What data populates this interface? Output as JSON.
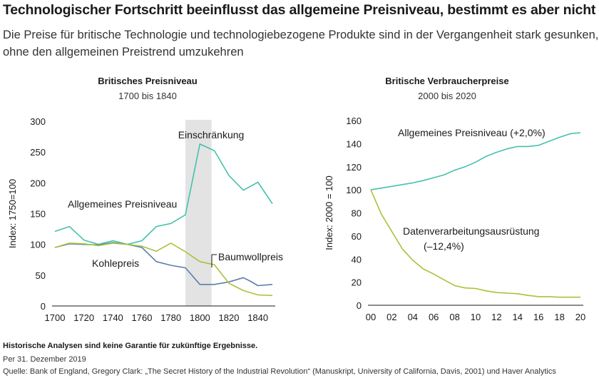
{
  "header": {
    "title": "Technologischer Fortschritt beeinflusst das allgemeine Preisniveau, bestimmt es aber nicht",
    "subtitle_line1": "Die Preise für britische Technologie und technologiebezogene Produkte sind in der Vergangenheit stark gesunken,",
    "subtitle_line2": "ohne den allgemeinen Preistrend umzukehren"
  },
  "colors": {
    "teal": "#45c1ac",
    "lime": "#a9c23a",
    "blue": "#5b7fae",
    "shade": "#e3e3e3"
  },
  "footer": {
    "disclaimer": "Historische Analysen sind keine Garantie für zukünftige Ergebnisse.",
    "date": "Per 31. Dezember 2019",
    "source": "Quelle: Bank of England, Gregory Clark: „The Secret History of the Industrial Revolution“ (Manuskript, University of California, Davis, 2001) und Haver Analytics"
  },
  "chart_data": [
    {
      "type": "line",
      "title": "Britisches Preisniveau",
      "subtitle": "1700 bis 1840",
      "ylabel": "Index: 1750=100",
      "xlim": [
        1700,
        1850
      ],
      "ylim": [
        0,
        300
      ],
      "xticks": [
        "1700",
        "1720",
        "1740",
        "1760",
        "1780",
        "1800",
        "1820",
        "1840"
      ],
      "yticks": [
        "0",
        "50",
        "100",
        "150",
        "200",
        "250",
        "300"
      ],
      "grid": false,
      "shaded_region": {
        "from": 1790,
        "to": 1808,
        "label": "Einschränkung"
      },
      "series": [
        {
          "name": "Allgemeines Preisniveau",
          "color": "teal",
          "x": [
            1700,
            1710,
            1720,
            1730,
            1740,
            1750,
            1760,
            1770,
            1780,
            1790,
            1800,
            1810,
            1820,
            1830,
            1840,
            1850
          ],
          "y": [
            121,
            129,
            107,
            100,
            106,
            100,
            106,
            129,
            134,
            148,
            263,
            252,
            212,
            188,
            201,
            166
          ]
        },
        {
          "name": "Kohlepreis",
          "color": "blue",
          "x": [
            1700,
            1710,
            1720,
            1730,
            1740,
            1750,
            1760,
            1770,
            1780,
            1790,
            1800,
            1810,
            1820,
            1830,
            1835,
            1840,
            1850
          ],
          "y": [
            95,
            101,
            100,
            99,
            103,
            100,
            95,
            72,
            66,
            62,
            35,
            35,
            39,
            46,
            40,
            33,
            35
          ]
        },
        {
          "name": "Baumwollpreis",
          "color": "lime",
          "x": [
            1700,
            1710,
            1720,
            1730,
            1740,
            1750,
            1760,
            1770,
            1780,
            1790,
            1800,
            1810,
            1820,
            1830,
            1840,
            1850
          ],
          "y": [
            95,
            102,
            101,
            98,
            102,
            100,
            97,
            89,
            102,
            88,
            72,
            67,
            37,
            25,
            18,
            17
          ]
        }
      ],
      "annotations": [
        "Einschränkung",
        "Allgemeines Preisniveau",
        "Kohlepreis",
        "Baumwollpreis"
      ]
    },
    {
      "type": "line",
      "title": "Britische Verbraucherpreise",
      "subtitle": "2000 bis 2020",
      "ylabel": "Index: 2000 = 100",
      "xlim": [
        2000,
        2020
      ],
      "ylim": [
        0,
        160
      ],
      "xticks": [
        "00",
        "02",
        "04",
        "06",
        "08",
        "10",
        "12",
        "14",
        "16",
        "18",
        "20"
      ],
      "yticks": [
        "0",
        "20",
        "40",
        "60",
        "80",
        "100",
        "120",
        "140",
        "160"
      ],
      "grid": false,
      "series": [
        {
          "name": "Allgemeines Preisniveau (+2,0%)",
          "color": "teal",
          "x": [
            2000,
            2001,
            2002,
            2003,
            2004,
            2005,
            2006,
            2007,
            2008,
            2009,
            2010,
            2011,
            2012,
            2013,
            2014,
            2015,
            2016,
            2017,
            2018,
            2019,
            2020
          ],
          "y": [
            100,
            101.5,
            103,
            104.5,
            106,
            108,
            110.5,
            113,
            117,
            120,
            124,
            129,
            132.5,
            135.5,
            137.5,
            137.5,
            138.5,
            142,
            145.5,
            148.5,
            149.5
          ]
        },
        {
          "name": "Datenverarbeitungsausrüstung",
          "note": "(–12,4%)",
          "color": "lime",
          "x": [
            2000,
            2001,
            2002,
            2003,
            2004,
            2005,
            2006,
            2007,
            2008,
            2009,
            2010,
            2011,
            2012,
            2013,
            2014,
            2015,
            2016,
            2017,
            2018,
            2019,
            2020
          ],
          "y": [
            100,
            79,
            64,
            49,
            39,
            31.5,
            27,
            22,
            17,
            15,
            14.5,
            12.5,
            11,
            10.5,
            10,
            8.5,
            7.5,
            7.5,
            7,
            7,
            7
          ]
        }
      ]
    }
  ]
}
